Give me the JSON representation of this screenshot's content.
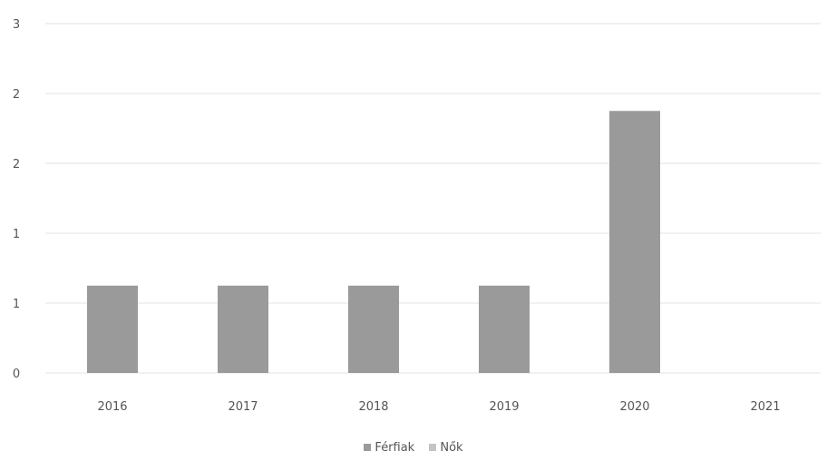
{
  "chart_data": {
    "type": "bar",
    "categories": [
      "2016",
      "2017",
      "2018",
      "2019",
      "2020",
      "2021"
    ],
    "series": [
      {
        "name": "Férfiak",
        "values": [
          1,
          1,
          1,
          1,
          3,
          0
        ],
        "color": "#9a9a9a"
      },
      {
        "name": "Nők",
        "values": [
          0,
          0,
          0,
          0,
          0,
          0
        ],
        "color": "#c4c4c4"
      }
    ],
    "y_tick_labels": [
      "0",
      "1",
      "1",
      "2",
      "2",
      "3"
    ],
    "ylim": [
      0,
      4
    ],
    "grid": true,
    "legend_position": "bottom"
  }
}
